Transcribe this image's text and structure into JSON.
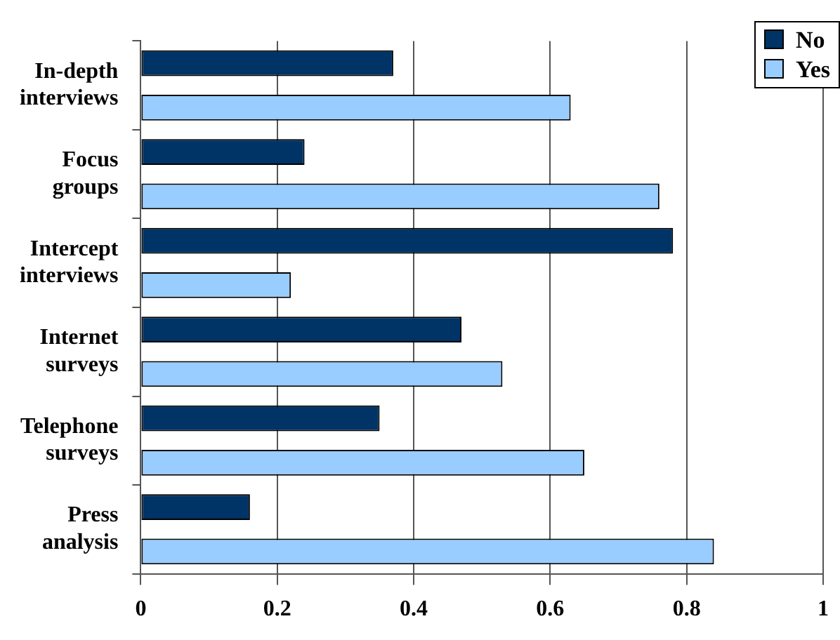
{
  "chart_data": {
    "type": "bar",
    "orientation": "horizontal",
    "categories": [
      "In-depth interviews",
      "Focus groups",
      "Intercept interviews",
      "Internet surveys",
      "Telephone surveys",
      "Press analysis"
    ],
    "series": [
      {
        "name": "No",
        "color": "#003366",
        "values": [
          0.37,
          0.24,
          0.78,
          0.47,
          0.35,
          0.16
        ]
      },
      {
        "name": "Yes",
        "color": "#99ccff",
        "values": [
          0.63,
          0.76,
          0.22,
          0.53,
          0.65,
          0.84
        ]
      }
    ],
    "xlim": [
      0,
      1
    ],
    "xticks": [
      0,
      0.2,
      0.4,
      0.6,
      0.8,
      1
    ],
    "grid": "x",
    "legend": "top right"
  }
}
